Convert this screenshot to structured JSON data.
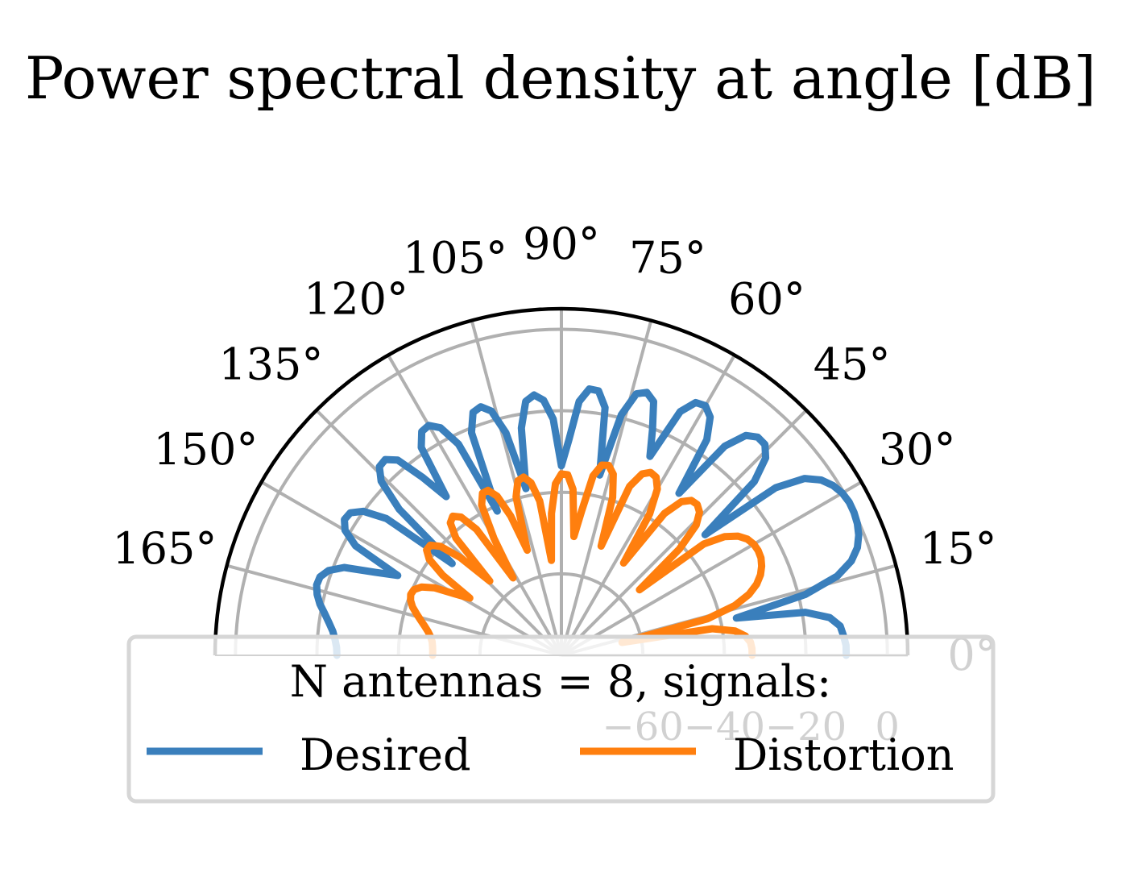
{
  "chart_data": {
    "type": "line",
    "projection": "polar",
    "title": "Power spectral density at angle [dB]",
    "theta_range_deg": [
      0,
      180
    ],
    "theta_ticks": [
      "0°",
      "15°",
      "30°",
      "45°",
      "60°",
      "75°",
      "90°",
      "105°",
      "120°",
      "135°",
      "150°",
      "165°"
    ],
    "theta_tick_values": [
      0,
      15,
      30,
      45,
      60,
      75,
      90,
      105,
      120,
      135,
      150,
      165
    ],
    "r_range": [
      -80,
      5
    ],
    "r_ticks": [
      "−60",
      "−40",
      "−20",
      "0"
    ],
    "r_tick_values": [
      -60,
      -40,
      -20,
      0
    ],
    "grid": true,
    "legend": {
      "title": "N antennas = 8, signals:",
      "location": "lower center",
      "columns": 2
    },
    "series": [
      {
        "name": "Desired",
        "color": "#3a7fbc",
        "theta_deg": [
          0,
          2,
          4,
          6,
          8,
          10,
          12,
          14,
          16,
          18,
          20,
          22,
          24,
          26,
          28,
          30,
          32,
          34,
          36,
          38,
          40,
          42,
          44,
          46,
          48,
          50,
          52,
          54,
          56,
          58,
          60,
          62,
          64,
          66,
          68,
          70,
          72,
          74,
          76,
          78,
          80,
          82,
          84,
          86,
          88,
          90,
          92,
          94,
          96,
          98,
          100,
          102,
          104,
          106,
          108,
          110,
          112,
          114,
          116,
          118,
          120,
          122,
          124,
          126,
          128,
          130,
          132,
          134,
          136,
          138,
          140,
          142,
          144,
          146,
          148,
          150,
          152,
          154,
          156,
          158,
          160,
          162,
          164,
          166,
          168,
          170,
          172,
          174,
          176,
          178,
          180
        ],
        "r_db": [
          -10.1,
          -10.1,
          -10.6,
          -11.2,
          -13.5,
          -19.2,
          -36.1,
          -18.3,
          -9.6,
          -5.2,
          -2.7,
          -1.3,
          -0.5,
          -0.1,
          0.0,
          -0.4,
          -1.4,
          -3.1,
          -6.2,
          -13.2,
          -34.0,
          -16.3,
          -10.3,
          -8.1,
          -8.0,
          -9.6,
          -14.9,
          -30.9,
          -16.2,
          -11.1,
          -9.3,
          -9.8,
          -13.5,
          -26.6,
          -20.3,
          -13.8,
          -12.2,
          -13.3,
          -19.2,
          -34.8,
          -18.3,
          -14.5,
          -14.3,
          -17.6,
          -27.1,
          -33.5,
          -22.0,
          -17.3,
          -15.8,
          -17.1,
          -23.4,
          -38.2,
          -23.8,
          -17.7,
          -15.9,
          -16.6,
          -21.1,
          -41.3,
          -22.4,
          -16.8,
          -14.9,
          -15.3,
          -18.5,
          -31.9,
          -24.5,
          -17.5,
          -15.4,
          -15.7,
          -18.5,
          -26.4,
          -45.0,
          -25.5,
          -19.9,
          -17.5,
          -17.2,
          -18.7,
          -22.8,
          -35.3,
          -29.9,
          -22.5,
          -19.2,
          -17.7,
          -17.5,
          -18.2,
          -19.4,
          -21.0,
          -22.4,
          -23.6,
          -24.3,
          -24.8,
          -24.9
        ]
      },
      {
        "name": "Distortion",
        "color": "#ff7f0e",
        "theta_deg": [
          0,
          2,
          4,
          6,
          8,
          10,
          12,
          14,
          16,
          18,
          20,
          22,
          24,
          26,
          28,
          30,
          32,
          34,
          36,
          38,
          40,
          42,
          44,
          46,
          48,
          50,
          52,
          54,
          56,
          58,
          60,
          62,
          64,
          66,
          68,
          70,
          72,
          74,
          76,
          78,
          80,
          82,
          84,
          86,
          88,
          90,
          92,
          94,
          96,
          98,
          100,
          102,
          104,
          106,
          108,
          110,
          112,
          114,
          116,
          118,
          120,
          122,
          124,
          126,
          128,
          130,
          132,
          134,
          136,
          138,
          140,
          142,
          144,
          146,
          148,
          150,
          152,
          154,
          156,
          158,
          160,
          162,
          164,
          166,
          168,
          170,
          172,
          174,
          176,
          178,
          180
        ],
        "r_db": [
          -33.2,
          -33.2,
          -33.5,
          -34.6,
          -37.0,
          -42.4,
          -64.8,
          -43.1,
          -35.7,
          -31.6,
          -29.0,
          -27.3,
          -26.2,
          -25.5,
          -25.3,
          -25.5,
          -26.2,
          -27.7,
          -30.5,
          -35.6,
          -55.0,
          -41.0,
          -34.0,
          -31.2,
          -30.2,
          -30.4,
          -32.2,
          -37.0,
          -52.7,
          -39.1,
          -32.9,
          -30.5,
          -30.1,
          -31.3,
          -35.3,
          -51.5,
          -39.3,
          -33.8,
          -32.0,
          -32.3,
          -35.3,
          -44.2,
          -50.7,
          -39.2,
          -35.7,
          -35.5,
          -37.9,
          -45.1,
          -56.6,
          -41.8,
          -37.0,
          -35.3,
          -35.9,
          -39.6,
          -52.9,
          -43.7,
          -37.9,
          -35.7,
          -35.8,
          -38.3,
          -46.9,
          -57.6,
          -42.7,
          -38.1,
          -36.7,
          -37.6,
          -41.3,
          -54.7,
          -45.4,
          -40.1,
          -38.0,
          -38.0,
          -39.9,
          -44.8,
          -53.5,
          -49.9,
          -44.7,
          -41.8,
          -40.4,
          -40.1,
          -40.6,
          -41.6,
          -43.0,
          -44.4,
          -45.7,
          -46.8,
          -47.6,
          -48.1,
          -48.3,
          -48.4,
          -48.4
        ]
      }
    ]
  }
}
